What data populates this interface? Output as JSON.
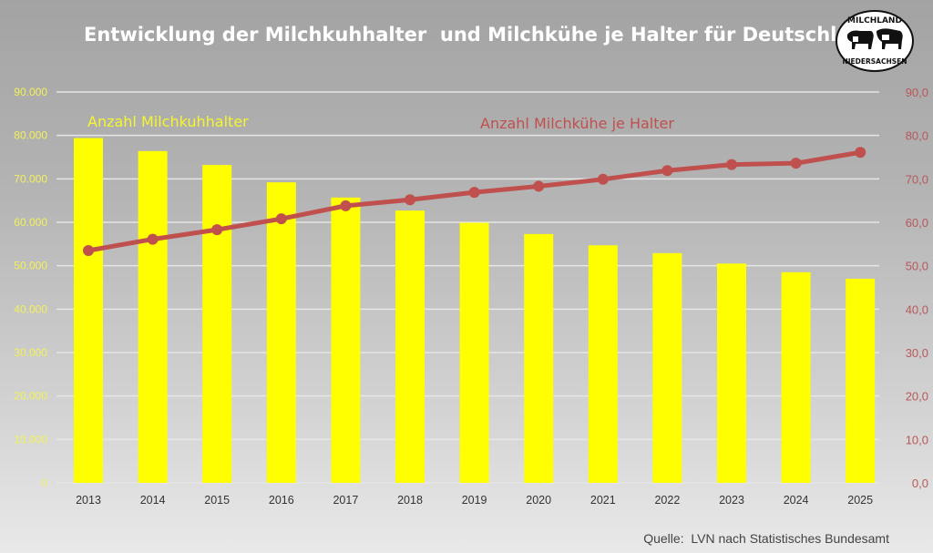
{
  "chart_data": {
    "type": "bar+line",
    "title": "Entwicklung der Milchkuhhalter  und Milchkühe je Halter für Deutschland",
    "categories": [
      "2013",
      "2014",
      "2015",
      "2016",
      "2017",
      "2018",
      "2019",
      "2020",
      "2021",
      "2022",
      "2023",
      "2024",
      "2025"
    ],
    "series": [
      {
        "name": "Anzahl Milchkuhhalter",
        "type": "bar",
        "axis": "left",
        "color": "#ffff00",
        "values": [
          79400,
          76400,
          73200,
          69200,
          65700,
          62700,
          59900,
          57300,
          54700,
          52900,
          50500,
          48500,
          47000
        ]
      },
      {
        "name": "Anzahl Milchkühe je Halter",
        "type": "line",
        "axis": "right",
        "color": "#c0504d",
        "values": [
          53.5,
          56.1,
          58.3,
          60.8,
          63.8,
          65.2,
          66.9,
          68.3,
          69.9,
          71.9,
          73.3,
          73.6,
          76.1
        ]
      }
    ],
    "left_axis": {
      "range": [
        0,
        90000
      ],
      "ticks": [
        "0",
        "10.000",
        "20.000",
        "30.000",
        "40.000",
        "50.000",
        "60.000",
        "70.000",
        "80.000",
        "90.000"
      ]
    },
    "right_axis": {
      "range": [
        0,
        90
      ],
      "ticks": [
        "0,0",
        "10,0",
        "20,0",
        "30,0",
        "40,0",
        "50,0",
        "60,0",
        "70,0",
        "80,0",
        "90,0"
      ]
    },
    "grid": true,
    "source": "Quelle:  LVN nach Statistisches Bundesamt",
    "logo_text": [
      "MILCHLAND",
      "NIEDERSACHSEN"
    ]
  }
}
